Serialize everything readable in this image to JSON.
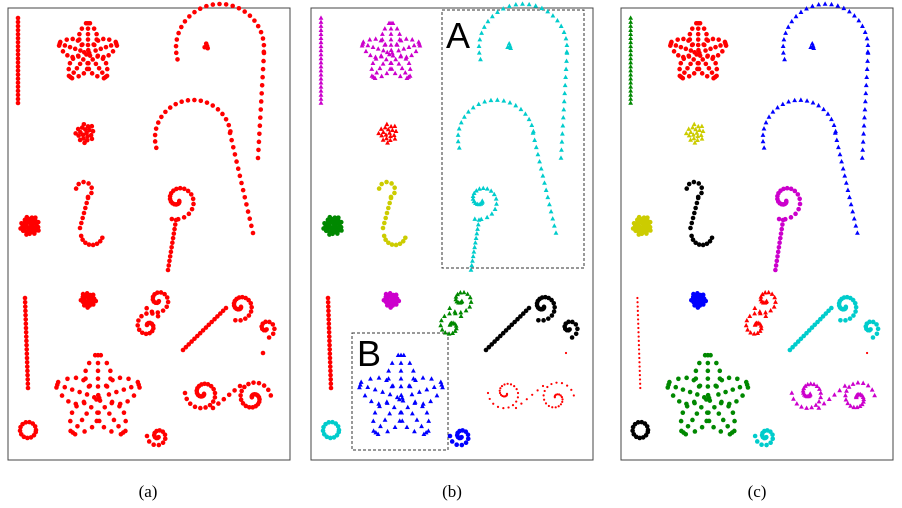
{
  "panels": [
    {
      "caption": "(a)"
    },
    {
      "caption": "(b)",
      "regions": [
        "A",
        "B"
      ]
    },
    {
      "caption": "(c)"
    }
  ]
}
